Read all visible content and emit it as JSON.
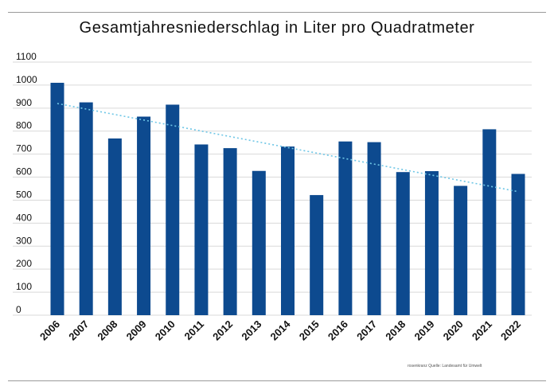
{
  "chart_data": {
    "type": "bar",
    "title": "Gesamtjahresniederschlag in Liter pro Quadratmeter",
    "xlabel": "",
    "ylabel": "",
    "categories": [
      "2006",
      "2007",
      "2008",
      "2009",
      "2010",
      "2011",
      "2012",
      "2013",
      "2014",
      "2015",
      "2016",
      "2017",
      "2018",
      "2019",
      "2020",
      "2021",
      "2022"
    ],
    "values": [
      1010,
      925,
      768,
      863,
      915,
      742,
      726,
      627,
      733,
      522,
      755,
      752,
      622,
      626,
      562,
      808,
      614
    ],
    "ylim": [
      0,
      1100
    ],
    "yticks": [
      "0",
      "100",
      "200",
      "300",
      "400",
      "500",
      "600",
      "700",
      "800",
      "900",
      "1000",
      "1100"
    ],
    "grid": true,
    "trendline": {
      "style": "dotted-linear",
      "start": 920,
      "end": 537
    },
    "source_text": "rosenkranz Quelle: Landesamt für Umwelt",
    "colors": {
      "bar": "#0d4a8f",
      "trend": "#6ec6e6",
      "grid": "#d9d9d9"
    }
  }
}
